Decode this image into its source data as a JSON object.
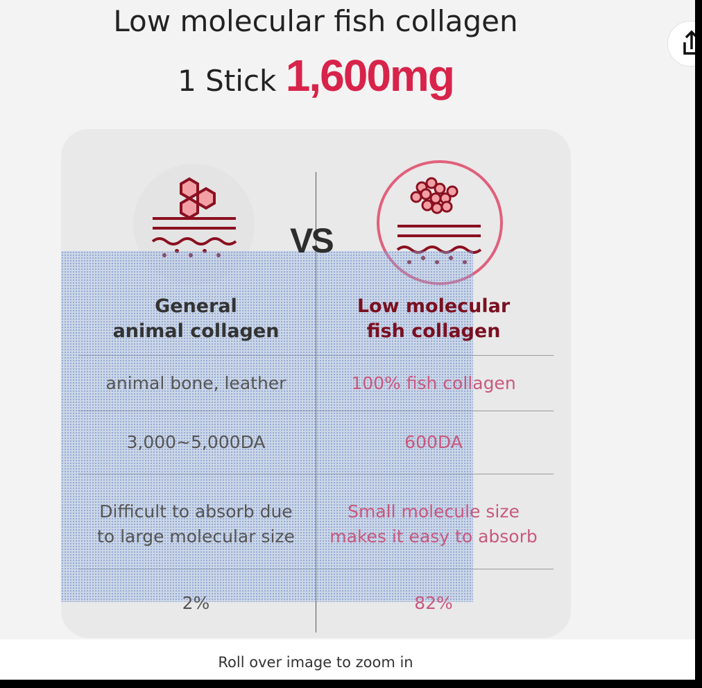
{
  "product_image": {
    "title_line1": "Low molecular fish collagen",
    "title_line2_prefix": "1 Stick",
    "title_line2_amount": "1,600mg",
    "vs": "VS",
    "left_header": [
      "General",
      "animal collagen"
    ],
    "right_header": [
      "Low molecular",
      "fish collagen"
    ],
    "rows": [
      {
        "left": [
          "animal bone, leather"
        ],
        "right": [
          "100% fish collagen"
        ]
      },
      {
        "left": [
          "3,000~5,000DA"
        ],
        "right": [
          "600DA"
        ]
      },
      {
        "left": [
          "Difficult to absorb due",
          "to large molecular size"
        ],
        "right": [
          "Small molecule size",
          "makes it easy to absorb"
        ]
      },
      {
        "left": [
          "2%"
        ],
        "right": [
          "82%"
        ]
      }
    ],
    "accent_color": "#d8234a"
  },
  "share_icon": "share-icon",
  "caption": "Roll over image to zoom in"
}
